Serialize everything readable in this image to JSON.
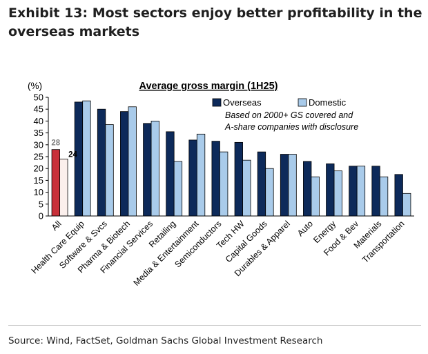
{
  "exhibit": {
    "title": "Exhibit 13: Most sectors enjoy better profitability in the overseas markets",
    "source": "Source: Wind, FactSet, Goldman Sachs Global Investment Research"
  },
  "chart_data": {
    "type": "bar",
    "title": "Average gross margin (1H25)",
    "ylabel": "(%)",
    "ylim": [
      0,
      50
    ],
    "yticks": [
      0,
      5,
      10,
      15,
      20,
      25,
      30,
      35,
      40,
      45,
      50
    ],
    "categories": [
      "All",
      "Health Care Equip",
      "Software & Svcs",
      "Pharma & Biotech",
      "Financial Services",
      "Retailing",
      "Media & Entertainment",
      "Semiconductors",
      "Tech HW",
      "Capital Goods",
      "Durables & Apparel",
      "Auto",
      "Energy",
      "Food & Bev",
      "Materials",
      "Transportation"
    ],
    "series": [
      {
        "name": "Overseas",
        "color": "#0d2a5a",
        "highlight_color": "#c8303a",
        "values": [
          28,
          48,
          45,
          44,
          39,
          35.5,
          32,
          31.5,
          31,
          27,
          26,
          23,
          22,
          21,
          21,
          17.5
        ]
      },
      {
        "name": "Domestic",
        "color": "#a9cbea",
        "highlight_color": "#fbefec",
        "values": [
          24,
          48.5,
          38.5,
          46,
          40,
          23,
          34.5,
          27,
          23.5,
          20,
          26,
          16.5,
          19,
          21,
          16.5,
          9.5
        ]
      }
    ],
    "data_labels": [
      {
        "category": "All",
        "series": "Overseas",
        "text": "28"
      },
      {
        "category": "All",
        "series": "Domestic",
        "text": "24"
      }
    ],
    "annotation": "Based on 2000+ GS covered and A-share companies with disclosure",
    "legend_position": "top-right"
  }
}
